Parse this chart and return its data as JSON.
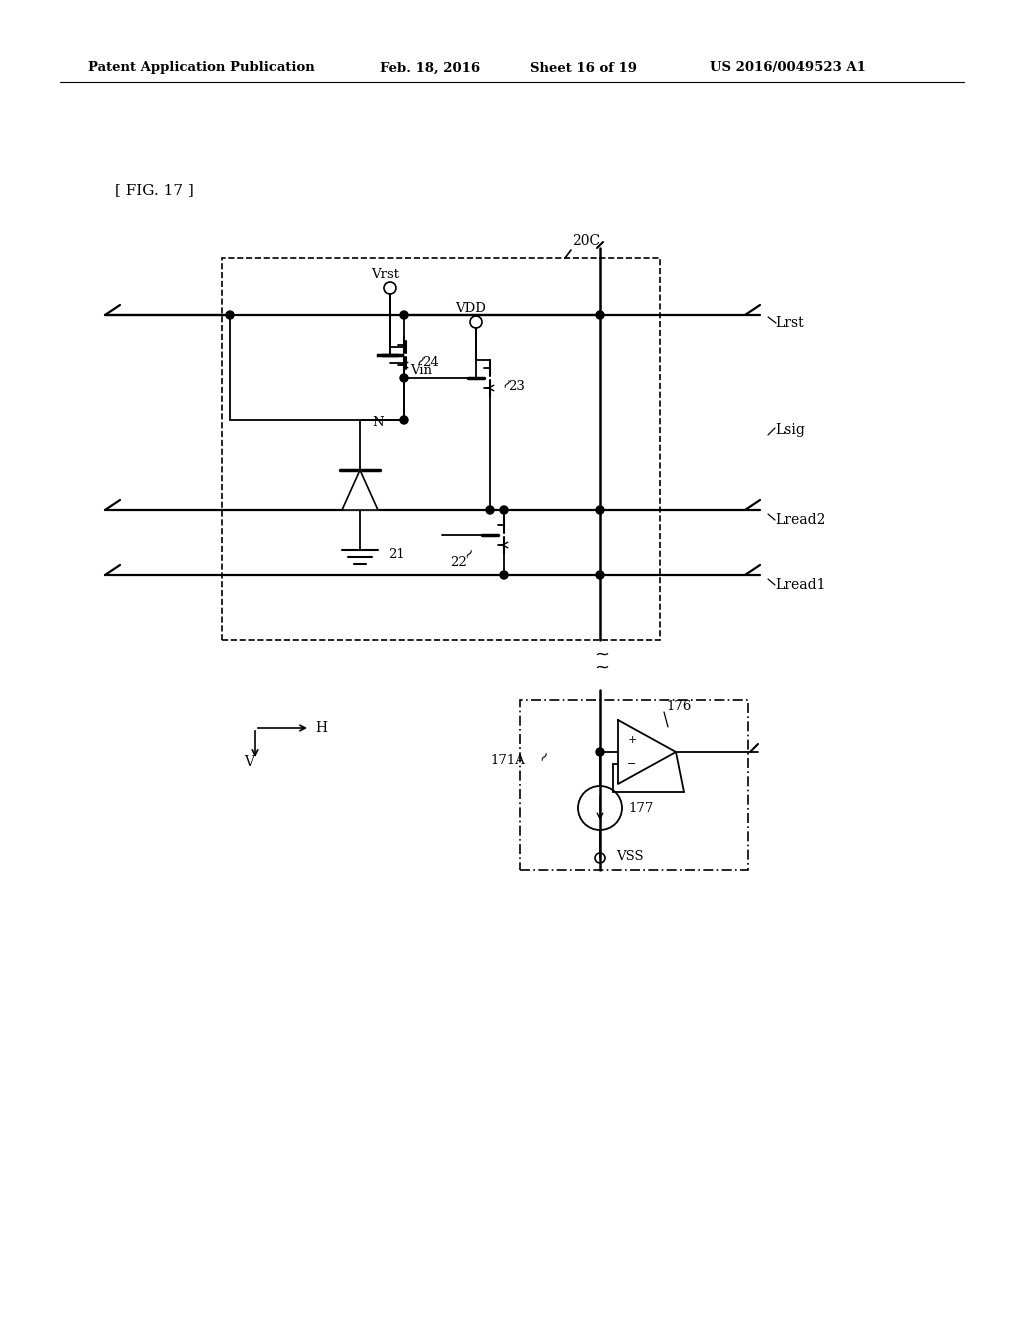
{
  "bg_color": "#ffffff",
  "header_left": "Patent Application Publication",
  "header_mid": "Feb. 18, 2016  Sheet 16 of 19",
  "header_right": "US 2016/0049523 A1",
  "fig_label": "[ FIG. 17 ]",
  "label_20C": "20C",
  "label_Vrst": "Vrst",
  "label_VDD": "VDD",
  "label_24": "24",
  "label_23": "23",
  "label_N": "N",
  "label_Vin": "Vin",
  "label_21": "21",
  "label_22": "22",
  "label_171A": "171A",
  "label_176": "176",
  "label_177": "177",
  "label_VSS": "VSS",
  "label_Lrst": "Lrst",
  "label_Lsig": "Lsig",
  "label_Lread2": "Lread2",
  "label_Lread1": "Lread1",
  "label_H": "H",
  "label_V": "V"
}
